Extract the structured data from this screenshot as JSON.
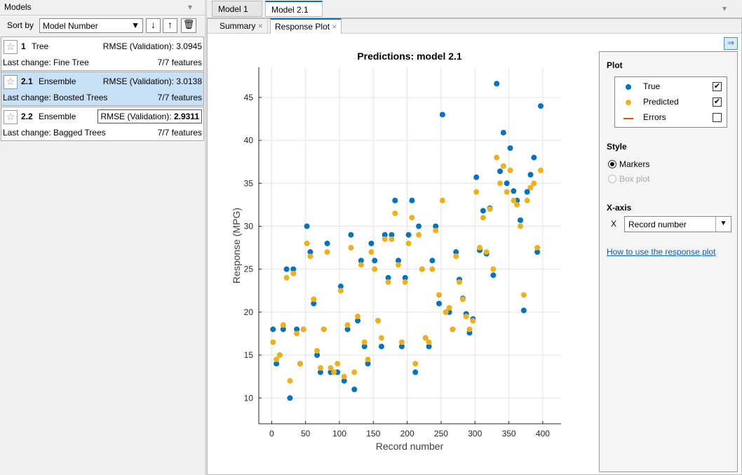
{
  "models_panel": {
    "title": "Models",
    "sort_label": "Sort by",
    "sort_value": "Model Number",
    "models": [
      {
        "id": "1",
        "type": "Tree",
        "metric_label": "RMSE (Validation):",
        "metric_value": "3.0945",
        "last_change": "Last change: Fine Tree",
        "features": "7/7 features"
      },
      {
        "id": "2.1",
        "type": "Ensemble",
        "metric_label": "RMSE (Validation):",
        "metric_value": "3.0138",
        "last_change": "Last change: Boosted Trees",
        "features": "7/7 features"
      },
      {
        "id": "2.2",
        "type": "Ensemble",
        "metric_label": "RMSE (Validation):",
        "metric_value": "2.9311",
        "last_change": "Last change: Bagged Trees",
        "features": "7/7 features"
      }
    ]
  },
  "tabs": [
    "Model 1",
    "Model 2.1"
  ],
  "subtabs": [
    "Summary",
    "Response Plot"
  ],
  "chart_data": {
    "type": "scatter",
    "title": "Predictions: model 2.1",
    "x_label": "Record number",
    "y_label": "Response (MPG)",
    "x": [
      2,
      7,
      12,
      17,
      22,
      27,
      32,
      37,
      42,
      47,
      52,
      57,
      62,
      67,
      72,
      77,
      82,
      87,
      92,
      97,
      102,
      107,
      112,
      117,
      122,
      127,
      132,
      137,
      142,
      147,
      152,
      157,
      162,
      167,
      172,
      177,
      182,
      187,
      192,
      197,
      202,
      207,
      212,
      217,
      222,
      227,
      232,
      237,
      242,
      247,
      252,
      257,
      262,
      267,
      272,
      277,
      282,
      287,
      292,
      297,
      302,
      307,
      312,
      317,
      322,
      327,
      332,
      337,
      342,
      347,
      352,
      357,
      362,
      367,
      372,
      377,
      382,
      387,
      392,
      397
    ],
    "series": [
      {
        "name": "True",
        "color": "#0072bd",
        "values": [
          18,
          14,
          15,
          18,
          25,
          10,
          25,
          18,
          14,
          18,
          30,
          27,
          21,
          15,
          13,
          18,
          28,
          13,
          13,
          13,
          23,
          12,
          18,
          29,
          11,
          19,
          26,
          16,
          14,
          28,
          26,
          19,
          16,
          29,
          24,
          29,
          33,
          26,
          16,
          24,
          29,
          33,
          13,
          30,
          25,
          17,
          16,
          26,
          30,
          21,
          43,
          20,
          20,
          18,
          27,
          23.8,
          21.6,
          19.8,
          17.6,
          19.2,
          35.7,
          27.2,
          31.8,
          26.8,
          32.1,
          24.3,
          46.6,
          36.4,
          40.9,
          35,
          39.1,
          34.1,
          33,
          30.7,
          20.2,
          34,
          36,
          38,
          27,
          44
        ]
      },
      {
        "name": "Predicted",
        "color": "#edb120",
        "values": [
          16.5,
          14.5,
          15,
          18.5,
          24,
          12,
          24.5,
          17.5,
          14,
          18,
          28,
          26.5,
          21.5,
          15.5,
          13.5,
          18,
          27,
          13.5,
          13,
          14,
          22.5,
          12.5,
          18.5,
          27.5,
          13,
          19.5,
          25.5,
          16.5,
          14.5,
          27,
          25,
          19,
          17,
          28.5,
          23.5,
          28.5,
          31.5,
          25.5,
          16.5,
          23.5,
          28,
          31,
          14,
          29,
          25,
          17,
          16.5,
          25,
          29.5,
          22,
          33,
          20,
          20.5,
          18,
          26.5,
          23.5,
          21.5,
          19.5,
          18,
          19,
          34,
          27.5,
          31,
          27,
          32,
          25,
          38,
          35,
          37,
          34,
          36.5,
          33,
          32.5,
          30,
          22,
          33,
          34.5,
          35,
          27.5,
          36.5
        ]
      }
    ],
    "xlim": [
      -19,
      427
    ],
    "ylim": [
      7,
      48.5
    ],
    "xticks": [
      0,
      50,
      100,
      150,
      200,
      250,
      300,
      350,
      400
    ],
    "yticks": [
      10,
      15,
      20,
      25,
      30,
      35,
      40,
      45
    ],
    "grid": true
  },
  "plot_options": {
    "plot_heading": "Plot",
    "checked": [
      true,
      true,
      false
    ],
    "errors_label": "Errors",
    "errors_color": "#d95319",
    "style_heading": "Style",
    "style_options": [
      "Markers",
      "Box plot"
    ],
    "xaxis_heading": "X-axis",
    "xaxis_label": "X",
    "xaxis_value": "Record number",
    "help_link": "How to use the response plot"
  }
}
